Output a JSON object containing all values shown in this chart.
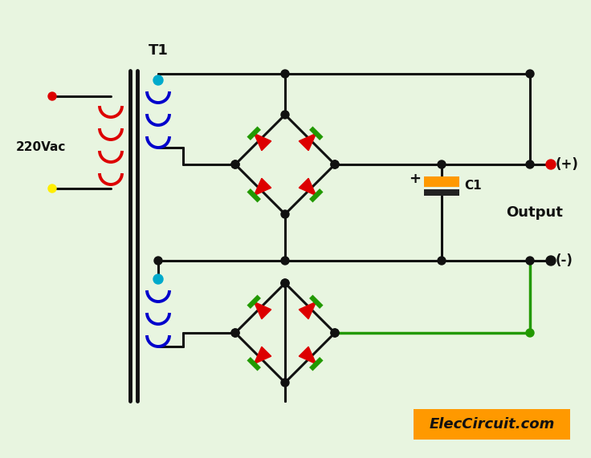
{
  "bg_color": "#e8f5e0",
  "title": "T1",
  "label_220vac": "220Vac",
  "label_output": "Output",
  "label_c1": "C1",
  "label_plus": "(+)",
  "label_minus": "(-)",
  "label_elec": "ElecCircuit.com",
  "lc": "#111111",
  "red": "#dd0000",
  "green": "#229900",
  "blue": "#0000cc",
  "cyan": "#00aacc",
  "orange": "#ff9900",
  "dark_red": "#880000",
  "figsize": [
    7.36,
    5.71
  ],
  "dpi": 100
}
